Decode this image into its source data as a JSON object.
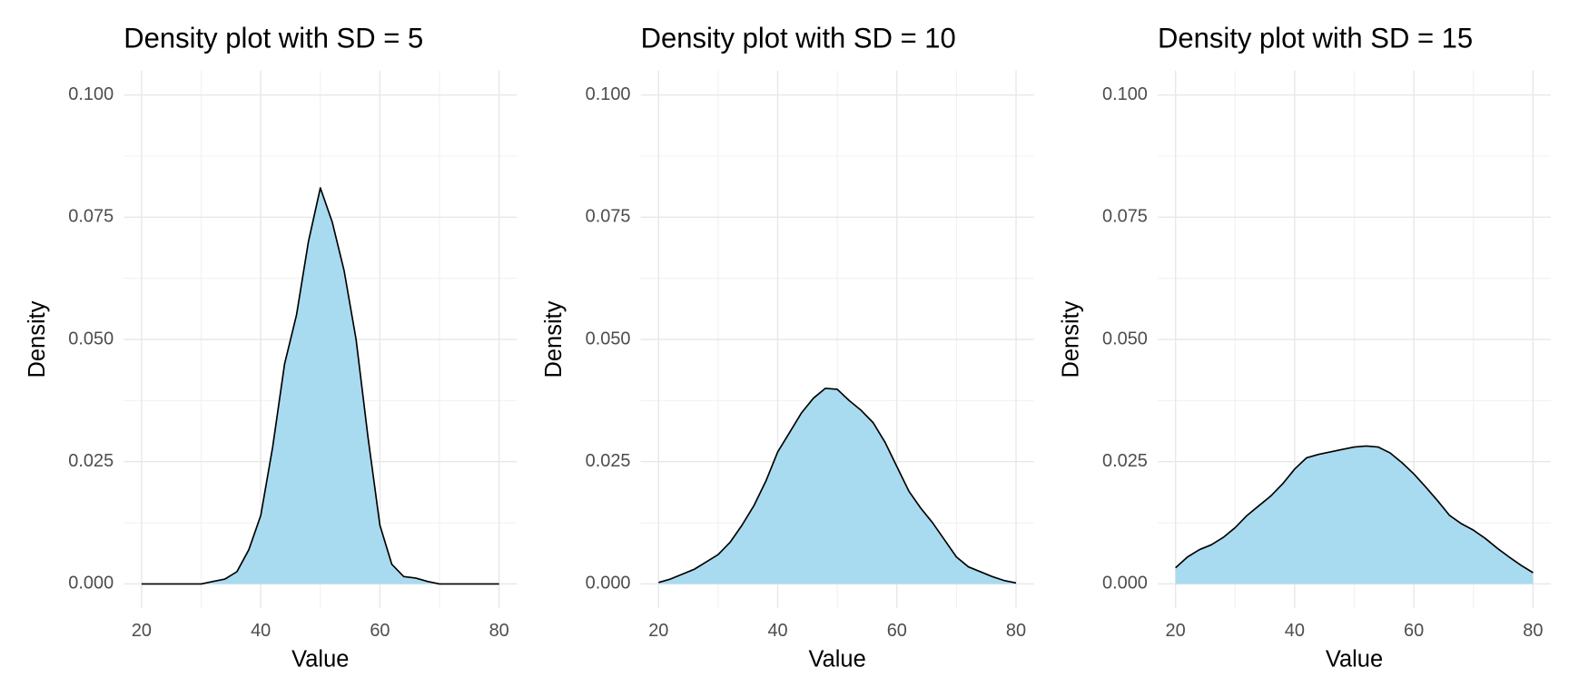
{
  "chart_data": [
    {
      "type": "area",
      "title": "Density plot with SD = 5",
      "x_label": "Value",
      "y_label": "Density",
      "color": "#a9dbf0",
      "grid": true,
      "x": [
        20,
        22,
        24,
        26,
        28,
        30,
        32,
        34,
        36,
        38,
        40,
        42,
        44,
        46,
        48,
        50,
        52,
        54,
        56,
        58,
        60,
        62,
        64,
        66,
        68,
        70,
        72,
        74,
        76,
        78,
        80
      ],
      "values": [
        0,
        0,
        0,
        0,
        0,
        0,
        0.0005,
        0.001,
        0.0025,
        0.007,
        0.014,
        0.028,
        0.045,
        0.055,
        0.07,
        0.081,
        0.074,
        0.064,
        0.05,
        0.03,
        0.012,
        0.004,
        0.0015,
        0.0012,
        0.0005,
        0,
        0,
        0,
        0,
        0,
        0
      ],
      "xlim": [
        17,
        83
      ],
      "ylim": [
        -0.005,
        0.105
      ],
      "xticks": [
        20,
        40,
        60,
        80
      ],
      "yticks": [
        {
          "value": 0,
          "label": "0.000"
        },
        {
          "value": 0.025,
          "label": "0.025"
        },
        {
          "value": 0.05,
          "label": "0.050"
        },
        {
          "value": 0.075,
          "label": "0.075"
        },
        {
          "value": 0.1,
          "label": "0.100"
        }
      ]
    },
    {
      "type": "area",
      "title": "Density plot with SD = 10",
      "x_label": "Value",
      "y_label": "Density",
      "color": "#a9dbf0",
      "grid": true,
      "x": [
        20,
        22,
        24,
        26,
        28,
        30,
        32,
        34,
        36,
        38,
        40,
        42,
        44,
        46,
        48,
        50,
        52,
        54,
        56,
        58,
        60,
        62,
        64,
        66,
        68,
        70,
        72,
        74,
        76,
        78,
        80
      ],
      "values": [
        0.0003,
        0.001,
        0.002,
        0.003,
        0.0045,
        0.006,
        0.0085,
        0.012,
        0.016,
        0.021,
        0.027,
        0.031,
        0.035,
        0.038,
        0.04,
        0.0398,
        0.0375,
        0.0355,
        0.033,
        0.029,
        0.024,
        0.019,
        0.0155,
        0.0125,
        0.009,
        0.0055,
        0.0035,
        0.0025,
        0.0015,
        0.0007,
        0.0002
      ],
      "xlim": [
        17,
        83
      ],
      "ylim": [
        -0.005,
        0.105
      ],
      "xticks": [
        20,
        40,
        60,
        80
      ],
      "yticks": [
        {
          "value": 0,
          "label": "0.000"
        },
        {
          "value": 0.025,
          "label": "0.025"
        },
        {
          "value": 0.05,
          "label": "0.050"
        },
        {
          "value": 0.075,
          "label": "0.075"
        },
        {
          "value": 0.1,
          "label": "0.100"
        }
      ]
    },
    {
      "type": "area",
      "title": "Density plot with SD = 15",
      "x_label": "Value",
      "y_label": "Density",
      "color": "#a9dbf0",
      "grid": true,
      "x": [
        20,
        22,
        24,
        26,
        28,
        30,
        32,
        34,
        36,
        38,
        40,
        42,
        44,
        46,
        48,
        50,
        52,
        54,
        56,
        58,
        60,
        62,
        64,
        66,
        68,
        70,
        72,
        74,
        76,
        78,
        80
      ],
      "values": [
        0.0033,
        0.0055,
        0.007,
        0.008,
        0.0095,
        0.0115,
        0.014,
        0.016,
        0.018,
        0.0205,
        0.0235,
        0.0258,
        0.0265,
        0.027,
        0.0275,
        0.028,
        0.0282,
        0.028,
        0.0268,
        0.0248,
        0.0225,
        0.0198,
        0.017,
        0.014,
        0.0123,
        0.011,
        0.0093,
        0.0073,
        0.0055,
        0.0038,
        0.0023
      ],
      "xlim": [
        17,
        83
      ],
      "ylim": [
        -0.005,
        0.105
      ],
      "xticks": [
        20,
        40,
        60,
        80
      ],
      "yticks": [
        {
          "value": 0,
          "label": "0.000"
        },
        {
          "value": 0.025,
          "label": "0.025"
        },
        {
          "value": 0.05,
          "label": "0.050"
        },
        {
          "value": 0.075,
          "label": "0.075"
        },
        {
          "value": 0.1,
          "label": "0.100"
        }
      ]
    }
  ]
}
